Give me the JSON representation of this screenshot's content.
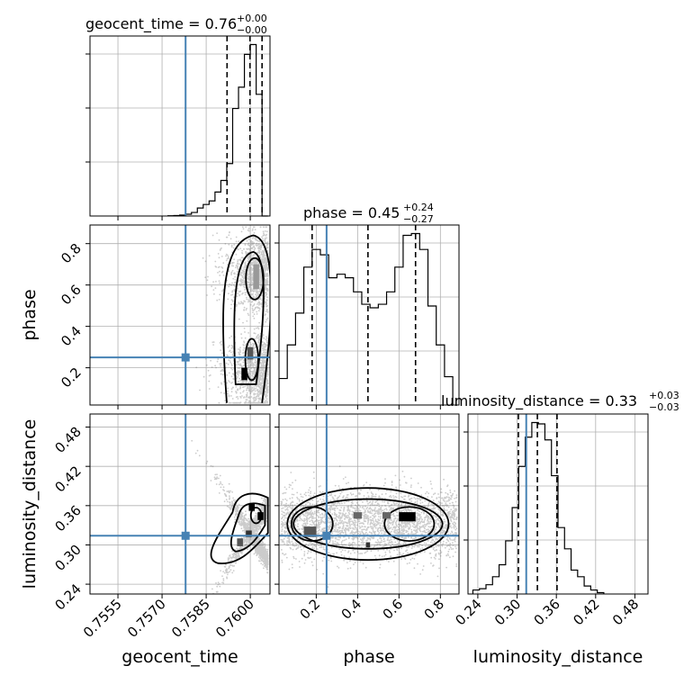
{
  "chart_data": {
    "type": "corner",
    "truths": {
      "geocent_time": 0.7578,
      "phase": 0.25,
      "luminosity_distance": 0.314
    },
    "parameters": [
      {
        "name": "geocent_time",
        "label": "geocent_time",
        "title_main": "geocent_time = 0.76",
        "title_plus": "+0.00",
        "title_minus": "−0.00",
        "range": [
          0.75455,
          0.76067
        ],
        "ticks": [
          0.7555,
          0.757,
          0.7585,
          0.76
        ],
        "tick_labels": [
          "0.7555",
          "0.7570",
          "0.7585",
          "0.7600"
        ],
        "quantiles": [
          0.75921,
          0.75999,
          0.7604
        ],
        "hist_bins": [
          0.7572,
          0.7574,
          0.7576,
          0.7578,
          0.758,
          0.7582,
          0.7584,
          0.7586,
          0.7588,
          0.759,
          0.7592,
          0.7594,
          0.7596,
          0.7598,
          0.76,
          0.7602,
          0.7604,
          0.7606
        ],
        "hist_values": [
          0.3,
          0.5,
          1,
          2,
          4,
          9,
          13,
          17,
          27,
          40,
          59,
          121,
          145,
          182,
          193,
          137,
          0
        ]
      },
      {
        "name": "phase",
        "label": "phase",
        "title_main": "phase = 0.45",
        "title_plus": "+0.24",
        "title_minus": "−0.27",
        "range": [
          0.02,
          0.89
        ],
        "ticks": [
          0.2,
          0.4,
          0.6,
          0.8
        ],
        "tick_labels": [
          "0.2",
          "0.4",
          "0.6",
          "0.8"
        ],
        "quantiles": [
          0.18,
          0.45,
          0.68
        ],
        "hist_bins": [
          0.02,
          0.06,
          0.1,
          0.14,
          0.18,
          0.22,
          0.26,
          0.3,
          0.34,
          0.38,
          0.42,
          0.46,
          0.5,
          0.54,
          0.58,
          0.62,
          0.66,
          0.7,
          0.74,
          0.78,
          0.82,
          0.86
        ],
        "hist_values": [
          0.15,
          0.34,
          0.52,
          0.78,
          0.88,
          0.85,
          0.72,
          0.74,
          0.72,
          0.64,
          0.57,
          0.55,
          0.57,
          0.64,
          0.78,
          0.96,
          0.97,
          0.88,
          0.56,
          0.34,
          0.16
        ]
      },
      {
        "name": "luminosity_distance",
        "label": "luminosity_distance",
        "title_main": "luminosity_distance = 0.33",
        "title_plus": "+0.03",
        "title_minus": "−0.03",
        "range": [
          0.225,
          0.5
        ],
        "ticks": [
          0.24,
          0.3,
          0.36,
          0.42,
          0.48
        ],
        "tick_labels": [
          "0.24",
          "0.30",
          "0.36",
          "0.42",
          "0.48"
        ],
        "quantiles": [
          0.302,
          0.331,
          0.361
        ],
        "hist_bins": [
          0.2325,
          0.2425,
          0.2525,
          0.2625,
          0.2725,
          0.2825,
          0.2925,
          0.3025,
          0.3125,
          0.3225,
          0.3325,
          0.3425,
          0.3525,
          0.3625,
          0.3725,
          0.3825,
          0.3925,
          0.4025,
          0.4125,
          0.4225,
          0.4325
        ],
        "hist_values": [
          3,
          4,
          7,
          13,
          22,
          40,
          65,
          96,
          118,
          129,
          128,
          116,
          89,
          50,
          34,
          18,
          13,
          6,
          3,
          1
        ]
      }
    ],
    "grid": true
  }
}
